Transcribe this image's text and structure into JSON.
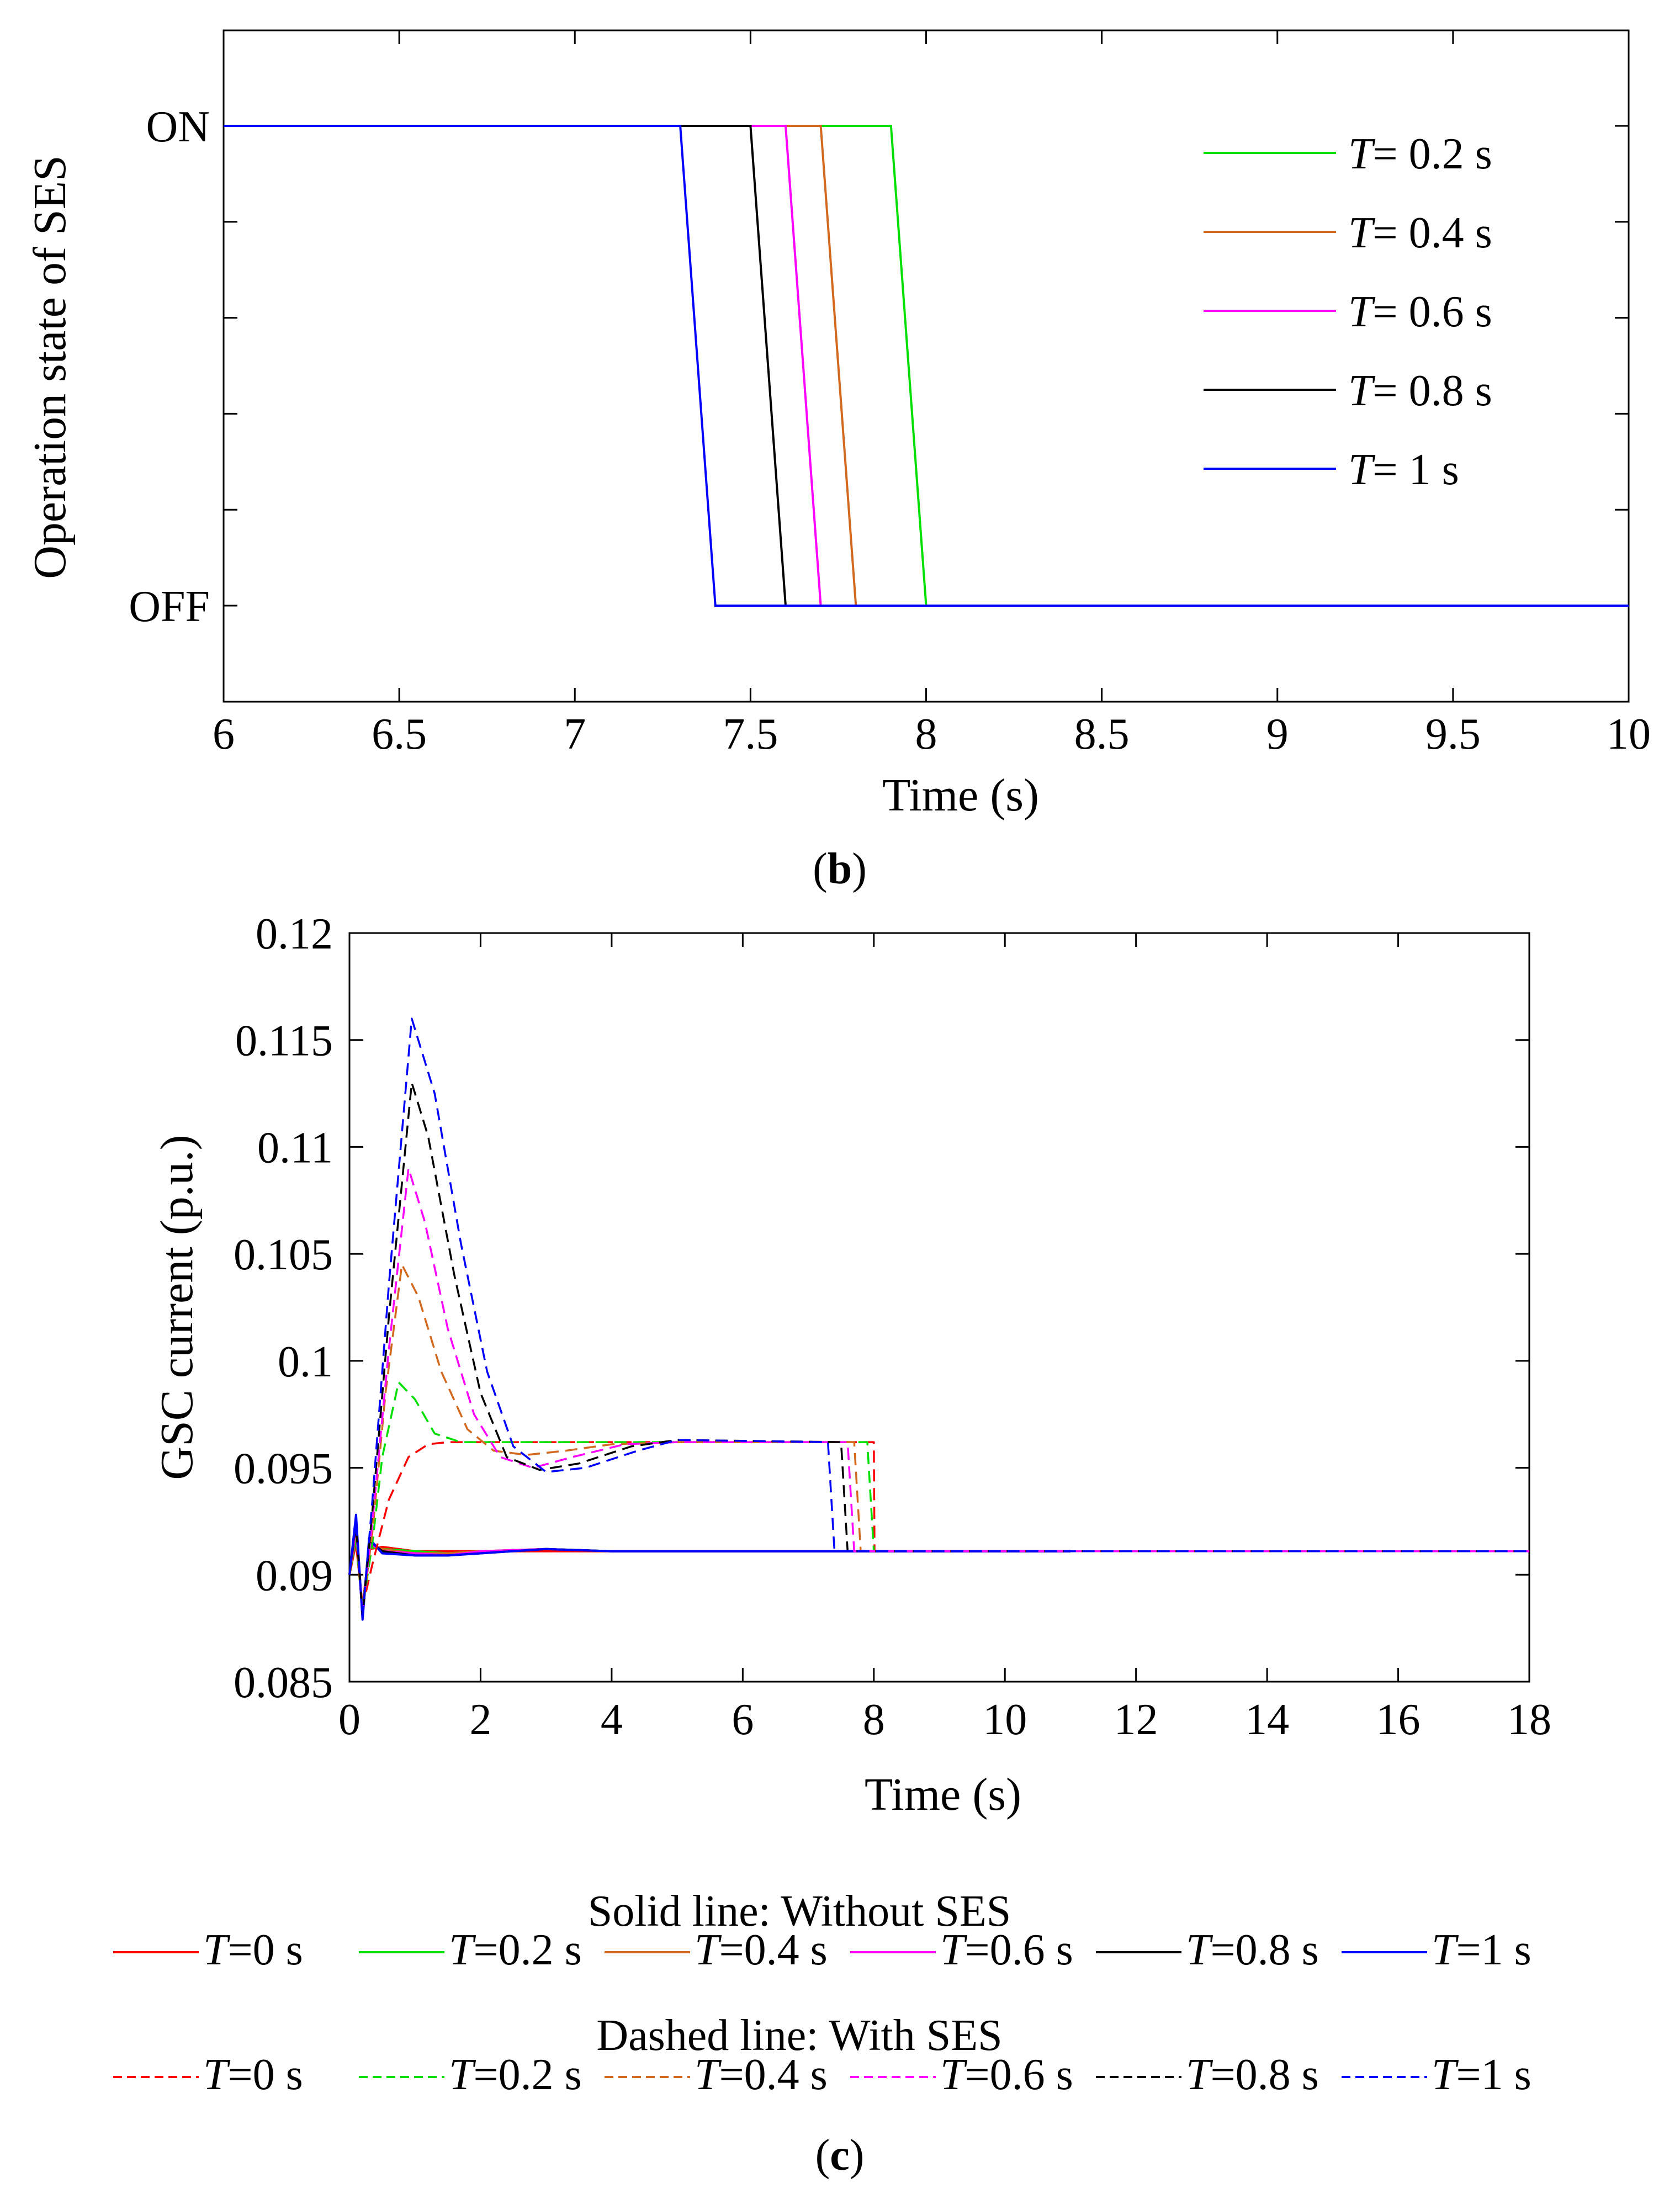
{
  "chart_data": [
    {
      "id": "b",
      "type": "line",
      "xlabel": "Time (s)",
      "ylabel": "Operation state of SES",
      "xlim": [
        6,
        10
      ],
      "x_ticks": [
        "6",
        "6.5",
        "7",
        "7.5",
        "8",
        "8.5",
        "9",
        "9.5",
        "10"
      ],
      "y_ticks": [
        "ON",
        "OFF"
      ],
      "caption_letter": "b",
      "legend": {
        "placement": "top-right",
        "prefix": "T",
        "entries": [
          "= 0.2 s",
          "= 0.4 s",
          "= 0.6 s",
          "= 0.8 s",
          "= 1 s"
        ]
      },
      "series": [
        {
          "name": "T = 0.2 s",
          "color": "#00e000",
          "off_start": 7.9,
          "off_end": 8.0
        },
        {
          "name": "T = 0.4 s",
          "color": "#d2691e",
          "off_start": 7.7,
          "off_end": 7.8
        },
        {
          "name": "T = 0.6 s",
          "color": "#ff00ff",
          "off_start": 7.6,
          "off_end": 7.7
        },
        {
          "name": "T = 0.8 s",
          "color": "#000000",
          "off_start": 7.5,
          "off_end": 7.6
        },
        {
          "name": "T = 1 s",
          "color": "#0000ff",
          "off_start": 7.3,
          "off_end": 7.4
        }
      ]
    },
    {
      "id": "c",
      "type": "line",
      "xlabel": "Time (s)",
      "ylabel": "GSC current (p.u.)",
      "xlim": [
        0,
        18
      ],
      "ylim": [
        0.085,
        0.12
      ],
      "x_ticks": [
        "0",
        "2",
        "4",
        "6",
        "8",
        "10",
        "12",
        "14",
        "16",
        "18"
      ],
      "y_ticks": [
        "0.085",
        "0.09",
        "0.095",
        "0.1",
        "0.105",
        "0.11",
        "0.115",
        "0.12"
      ],
      "caption_letter": "c",
      "legend": {
        "solid_title": "Solid line: Without SES",
        "dashed_title": "Dashed line: With SES",
        "prefix": "T",
        "entries": [
          "=0 s",
          "=0.2 s",
          "=0.4 s",
          "=0.6 s",
          "=0.8 s",
          "=1 s"
        ]
      },
      "solid_series": [
        {
          "name": "T=0 s",
          "color": "#ff0000",
          "x": [
            0,
            0.1,
            0.2,
            0.3,
            0.5,
            1.0,
            1.5,
            2.0,
            3.0,
            4.0,
            6.0,
            8.0,
            10.0,
            11.0
          ],
          "y": [
            0.09,
            0.0915,
            0.0885,
            0.0912,
            0.0913,
            0.0911,
            0.0911,
            0.0911,
            0.0911,
            0.0911,
            0.0911,
            0.0911,
            0.0911,
            0.0911
          ]
        },
        {
          "name": "T=0.2 s",
          "color": "#00e000",
          "x": [
            0,
            0.1,
            0.2,
            0.3,
            0.5,
            1.0,
            1.5,
            2.0,
            3.0,
            4.0,
            6.0,
            8.0,
            10.0,
            11.0
          ],
          "y": [
            0.09,
            0.0918,
            0.0883,
            0.0913,
            0.0912,
            0.0911,
            0.091,
            0.0911,
            0.0912,
            0.0911,
            0.0911,
            0.0911,
            0.0911,
            0.0911
          ]
        },
        {
          "name": "T=0.4 s",
          "color": "#d2691e",
          "x": [
            0,
            0.1,
            0.2,
            0.3,
            0.5,
            1.0,
            1.5,
            2.0,
            3.0,
            4.0,
            6.0,
            8.0,
            10.0,
            11.0
          ],
          "y": [
            0.09,
            0.0921,
            0.0882,
            0.0914,
            0.0912,
            0.091,
            0.091,
            0.0911,
            0.0912,
            0.0911,
            0.0911,
            0.0911,
            0.0911,
            0.0911
          ]
        },
        {
          "name": "T=0.6 s",
          "color": "#ff00ff",
          "x": [
            0,
            0.1,
            0.2,
            0.3,
            0.5,
            1.0,
            1.5,
            2.0,
            3.0,
            4.0,
            6.0,
            8.0,
            10.0,
            11.0
          ],
          "y": [
            0.09,
            0.0923,
            0.0881,
            0.0915,
            0.0911,
            0.091,
            0.0909,
            0.0911,
            0.0912,
            0.0911,
            0.0911,
            0.0911,
            0.0911,
            0.0911
          ]
        },
        {
          "name": "T=0.8 s",
          "color": "#000000",
          "x": [
            0,
            0.1,
            0.2,
            0.3,
            0.5,
            1.0,
            1.5,
            2.0,
            3.0,
            4.0,
            6.0,
            8.0,
            10.0,
            11.0
          ],
          "y": [
            0.09,
            0.0926,
            0.088,
            0.0916,
            0.0911,
            0.0909,
            0.0909,
            0.091,
            0.0912,
            0.0911,
            0.0911,
            0.0911,
            0.0911,
            0.0911
          ]
        },
        {
          "name": "T=1 s",
          "color": "#0000ff",
          "x": [
            0,
            0.1,
            0.2,
            0.3,
            0.5,
            1.0,
            1.5,
            2.0,
            3.0,
            4.0,
            6.0,
            8.0,
            10.0,
            11.0
          ],
          "y": [
            0.09,
            0.0928,
            0.0879,
            0.0917,
            0.091,
            0.0909,
            0.0909,
            0.091,
            0.0912,
            0.0911,
            0.0911,
            0.0911,
            0.0911,
            0.0911
          ]
        }
      ],
      "dashed_series": [
        {
          "name": "T=0 s",
          "color": "#ff0000",
          "x": [
            0,
            0.1,
            0.2,
            0.35,
            0.6,
            0.9,
            1.2,
            1.5,
            2.0,
            4.0,
            8.0,
            8.01,
            18.0
          ],
          "y": [
            0.09,
            0.0915,
            0.0885,
            0.0905,
            0.0935,
            0.0955,
            0.0961,
            0.0962,
            0.0962,
            0.0962,
            0.0962,
            0.0911,
            0.0911
          ]
        },
        {
          "name": "T=0.2 s",
          "color": "#00e000",
          "x": [
            0,
            0.1,
            0.2,
            0.35,
            0.5,
            0.75,
            1.0,
            1.3,
            1.7,
            2.2,
            3.0,
            4.0,
            7.9,
            8.0,
            18.0
          ],
          "y": [
            0.09,
            0.0917,
            0.0884,
            0.0915,
            0.0955,
            0.099,
            0.0982,
            0.0966,
            0.0962,
            0.0962,
            0.0962,
            0.0962,
            0.0962,
            0.0911,
            0.0911
          ]
        },
        {
          "name": "T=0.4 s",
          "color": "#d2691e",
          "x": [
            0,
            0.1,
            0.2,
            0.35,
            0.55,
            0.8,
            1.05,
            1.4,
            1.8,
            2.2,
            2.7,
            3.3,
            4.0,
            5.0,
            7.7,
            7.8,
            18.0
          ],
          "y": [
            0.09,
            0.0919,
            0.0883,
            0.092,
            0.0985,
            0.1045,
            0.103,
            0.0995,
            0.0968,
            0.0958,
            0.0956,
            0.0958,
            0.0961,
            0.0962,
            0.0962,
            0.0911,
            0.0911
          ]
        },
        {
          "name": "T=0.6 s",
          "color": "#ff00ff",
          "x": [
            0,
            0.1,
            0.2,
            0.35,
            0.6,
            0.9,
            1.15,
            1.5,
            1.9,
            2.3,
            2.8,
            3.4,
            4.2,
            5.0,
            7.6,
            7.7,
            18.0
          ],
          "y": [
            0.09,
            0.0921,
            0.0882,
            0.0925,
            0.1005,
            0.109,
            0.1065,
            0.1015,
            0.0975,
            0.0955,
            0.095,
            0.0955,
            0.0961,
            0.0962,
            0.0962,
            0.0911,
            0.0911
          ]
        },
        {
          "name": "T=0.8 s",
          "color": "#000000",
          "x": [
            0,
            0.1,
            0.2,
            0.35,
            0.6,
            0.95,
            1.2,
            1.6,
            2.0,
            2.4,
            2.9,
            3.5,
            4.3,
            5.0,
            7.5,
            7.6,
            18.0
          ],
          "y": [
            0.09,
            0.0923,
            0.0881,
            0.093,
            0.102,
            0.113,
            0.1105,
            0.104,
            0.0985,
            0.0955,
            0.0949,
            0.0952,
            0.096,
            0.0963,
            0.0962,
            0.0911,
            0.0911
          ]
        },
        {
          "name": "T=1 s",
          "color": "#0000ff",
          "x": [
            0,
            0.1,
            0.2,
            0.35,
            0.6,
            0.95,
            1.3,
            1.7,
            2.1,
            2.5,
            3.0,
            3.6,
            4.4,
            5.0,
            7.3,
            7.4,
            18.0
          ],
          "y": [
            0.09,
            0.0925,
            0.088,
            0.0935,
            0.1035,
            0.116,
            0.1125,
            0.1055,
            0.0995,
            0.096,
            0.0948,
            0.095,
            0.0958,
            0.0963,
            0.0962,
            0.0911,
            0.0911
          ]
        }
      ]
    }
  ]
}
